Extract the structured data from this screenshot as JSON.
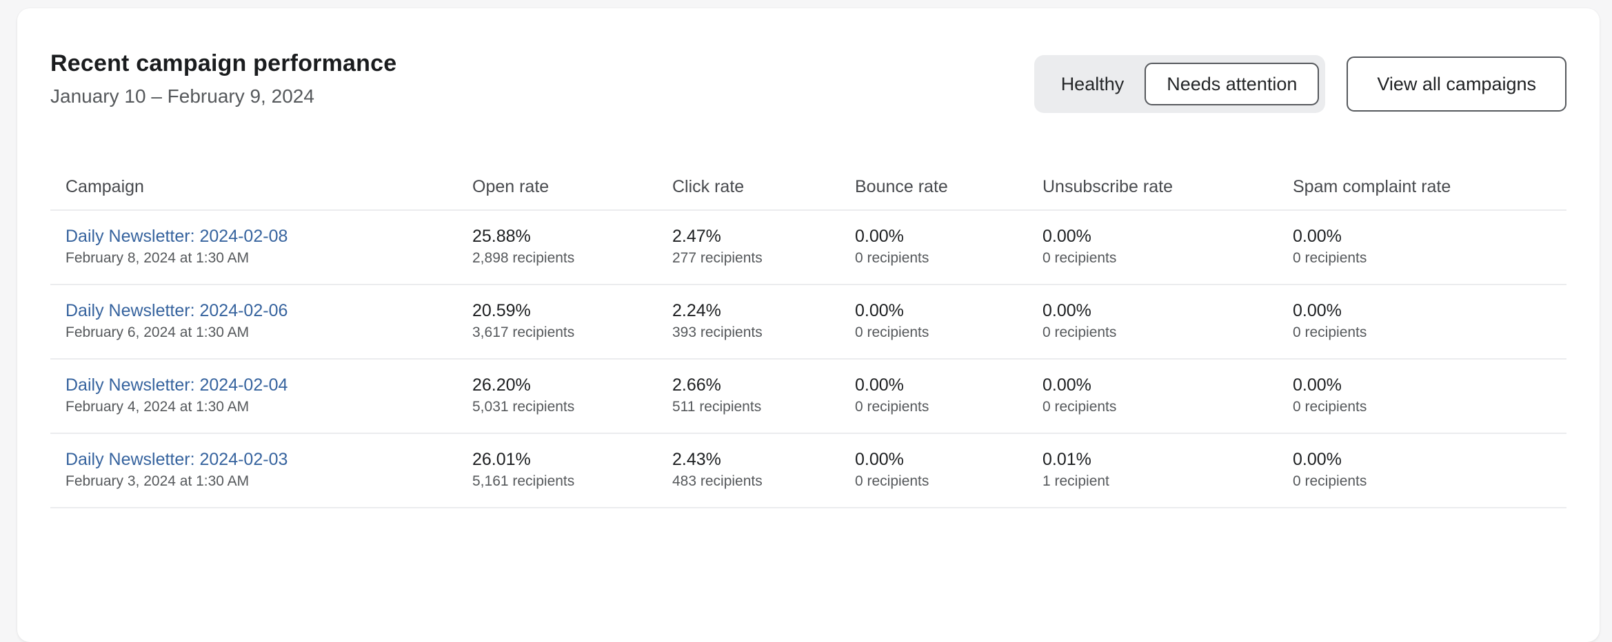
{
  "colors": {
    "page_background": "#f6f6f7",
    "card_background": "#ffffff",
    "link": "#36639e",
    "button_border": "#55585c",
    "segmented_background": "#ebecee",
    "divider": "#ebecee"
  },
  "header": {
    "title": "Recent campaign performance",
    "date_range": "January 10 – February 9, 2024",
    "segmented_control": {
      "options": [
        {
          "label": "Healthy",
          "selected": false
        },
        {
          "label": "Needs attention",
          "selected": true
        }
      ]
    },
    "view_all_label": "View all campaigns"
  },
  "table": {
    "columns": [
      "Campaign",
      "Open rate",
      "Click rate",
      "Bounce rate",
      "Unsubscribe rate",
      "Spam complaint rate"
    ],
    "rows": [
      {
        "campaign": "Daily Newsletter: 2024-02-08",
        "sent": "February 8, 2024 at 1:30 AM",
        "open_rate": "25.88%",
        "open_recipients": "2,898 recipients",
        "click_rate": "2.47%",
        "click_recipients": "277 recipients",
        "bounce_rate": "0.00%",
        "bounce_recipients": "0 recipients",
        "unsubscribe_rate": "0.00%",
        "unsubscribe_recipients": "0 recipients",
        "spam_rate": "0.00%",
        "spam_recipients": "0 recipients"
      },
      {
        "campaign": "Daily Newsletter: 2024-02-06",
        "sent": "February 6, 2024 at 1:30 AM",
        "open_rate": "20.59%",
        "open_recipients": "3,617 recipients",
        "click_rate": "2.24%",
        "click_recipients": "393 recipients",
        "bounce_rate": "0.00%",
        "bounce_recipients": "0 recipients",
        "unsubscribe_rate": "0.00%",
        "unsubscribe_recipients": "0 recipients",
        "spam_rate": "0.00%",
        "spam_recipients": "0 recipients"
      },
      {
        "campaign": "Daily Newsletter: 2024-02-04",
        "sent": "February 4, 2024 at 1:30 AM",
        "open_rate": "26.20%",
        "open_recipients": "5,031 recipients",
        "click_rate": "2.66%",
        "click_recipients": "511 recipients",
        "bounce_rate": "0.00%",
        "bounce_recipients": "0 recipients",
        "unsubscribe_rate": "0.00%",
        "unsubscribe_recipients": "0 recipients",
        "spam_rate": "0.00%",
        "spam_recipients": "0 recipients"
      },
      {
        "campaign": "Daily Newsletter: 2024-02-03",
        "sent": "February 3, 2024 at 1:30 AM",
        "open_rate": "26.01%",
        "open_recipients": "5,161 recipients",
        "click_rate": "2.43%",
        "click_recipients": "483 recipients",
        "bounce_rate": "0.00%",
        "bounce_recipients": "0 recipients",
        "unsubscribe_rate": "0.01%",
        "unsubscribe_recipients": "1 recipient",
        "spam_rate": "0.00%",
        "spam_recipients": "0 recipients"
      }
    ]
  }
}
